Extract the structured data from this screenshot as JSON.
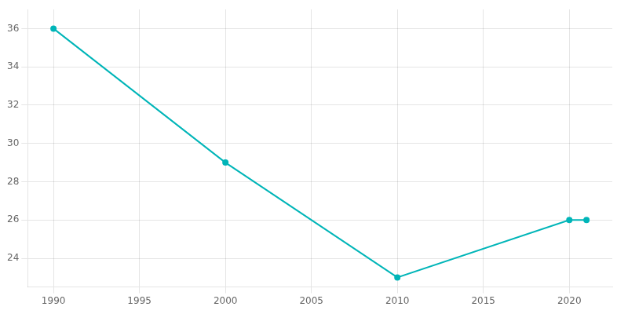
{
  "chart_data": {
    "type": "line",
    "x": [
      1990,
      2000,
      2010,
      2020,
      2021
    ],
    "values": [
      36,
      29,
      23,
      26,
      26
    ],
    "color": "#00b5b8",
    "marker": "circle",
    "xlim": [
      1988.5,
      2022.5
    ],
    "ylim": [
      22.5,
      37.0
    ],
    "xticks": [
      1990,
      1995,
      2000,
      2005,
      2010,
      2015,
      2020
    ],
    "yticks": [
      24,
      26,
      28,
      30,
      32,
      34,
      36
    ],
    "grid": true
  }
}
